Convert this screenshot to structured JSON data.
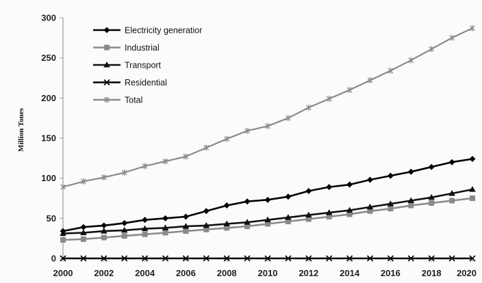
{
  "chart_data": {
    "type": "line",
    "title": "",
    "xlabel": "",
    "ylabel": "Million Tones",
    "xlim": [
      2000,
      2020
    ],
    "ylim": [
      0,
      300
    ],
    "x_ticks": [
      "2000",
      "2002",
      "2004",
      "2006",
      "2008",
      "2010",
      "2012",
      "2014",
      "2016",
      "2018",
      "2020"
    ],
    "y_ticks": [
      "0",
      "50",
      "100",
      "150",
      "200",
      "250",
      "300"
    ],
    "x": [
      2000,
      2001,
      2002,
      2003,
      2004,
      2005,
      2006,
      2007,
      2008,
      2009,
      2010,
      2011,
      2012,
      2013,
      2014,
      2015,
      2016,
      2017,
      2018,
      2019,
      2020
    ],
    "grid": false,
    "legend_position": "top-left",
    "series": [
      {
        "name": "Electricity generation",
        "legend_label": "Electricity generatior",
        "marker": "diamond",
        "color": "#000000",
        "values": [
          34,
          39,
          41,
          44,
          48,
          50,
          52,
          59,
          66,
          71,
          73,
          77,
          84,
          89,
          92,
          98,
          103,
          108,
          114,
          120,
          124
        ]
      },
      {
        "name": "Industrial",
        "legend_label": "Industrial",
        "marker": "square",
        "color": "#8a8a8a",
        "values": [
          23,
          24,
          26,
          28,
          30,
          32,
          34,
          36,
          38,
          40,
          43,
          46,
          49,
          52,
          55,
          59,
          62,
          66,
          69,
          72,
          75
        ]
      },
      {
        "name": "Transport",
        "legend_label": "Transport",
        "marker": "triangle",
        "color": "#111111",
        "values": [
          31,
          32,
          34,
          35,
          37,
          38,
          40,
          41,
          43,
          45,
          48,
          51,
          54,
          57,
          60,
          64,
          68,
          72,
          76,
          81,
          86
        ]
      },
      {
        "name": "Residential",
        "legend_label": "Residential",
        "marker": "x",
        "color": "#000000",
        "values": [
          0,
          0,
          0,
          0,
          0,
          0,
          0,
          0,
          0,
          0,
          0,
          0,
          0,
          0,
          0,
          0,
          0,
          0,
          0,
          0,
          0
        ]
      },
      {
        "name": "Total",
        "legend_label": "Total",
        "marker": "star",
        "color": "#8a8a8a",
        "values": [
          89,
          96,
          101,
          107,
          115,
          121,
          127,
          138,
          149,
          159,
          165,
          175,
          188,
          199,
          210,
          222,
          234,
          247,
          261,
          275,
          287
        ]
      }
    ]
  }
}
